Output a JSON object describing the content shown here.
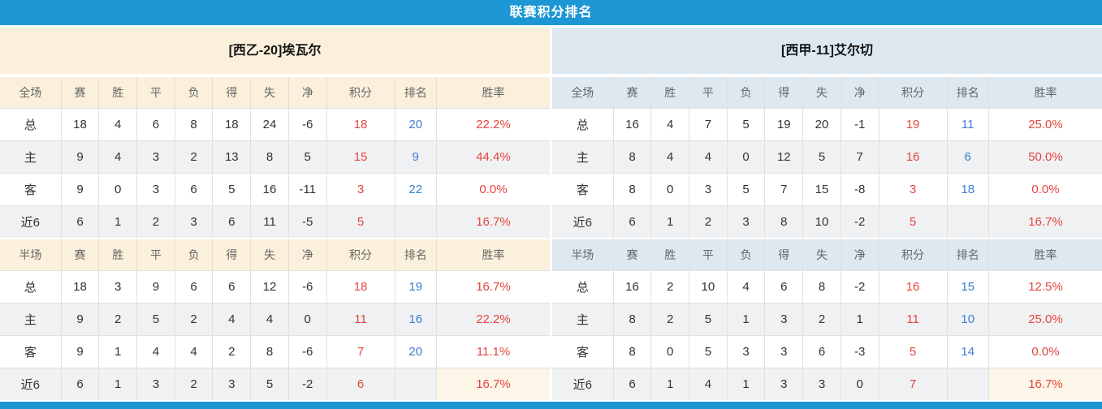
{
  "title": "联赛积分排名",
  "colors": {
    "accent_blue": "#1d97d4",
    "cream": "#faf0db",
    "cream_highlight": "#fcf6e8",
    "light_blue": "#dde8f1",
    "row_alt": "#f0f1f3",
    "border": "#e0e0e0",
    "points_red": "#e6453e",
    "rank_blue": "#3d7dd2",
    "home_label_red": "#d2495c",
    "away_label_blue": "#5a55dd",
    "text_dark": "#333333",
    "header_text": "#666666"
  },
  "stat_columns": [
    "赛",
    "胜",
    "平",
    "负",
    "得",
    "失",
    "净",
    "积分",
    "排名",
    "胜率"
  ],
  "teams": [
    {
      "name": "[西乙-20]埃瓦尔",
      "theme": "cream",
      "sections": [
        {
          "scope_label": "全场",
          "rows": [
            {
              "label": "总",
              "label_style": "dark",
              "values": [
                "18",
                "4",
                "6",
                "8",
                "18",
                "24",
                "-6"
              ],
              "points": "18",
              "rank": "20",
              "rate": "22.2%"
            },
            {
              "label": "主",
              "label_style": "home",
              "values": [
                "9",
                "4",
                "3",
                "2",
                "13",
                "8",
                "5"
              ],
              "points": "15",
              "rank": "9",
              "rate": "44.4%"
            },
            {
              "label": "客",
              "label_style": "away",
              "values": [
                "9",
                "0",
                "3",
                "6",
                "5",
                "16",
                "-11"
              ],
              "points": "3",
              "rank": "22",
              "rate": "0.0%"
            },
            {
              "label": "近6",
              "label_style": "dark",
              "values": [
                "6",
                "1",
                "2",
                "3",
                "6",
                "11",
                "-5"
              ],
              "points": "5",
              "rank": "",
              "rate": "16.7%"
            }
          ]
        },
        {
          "scope_label": "半场",
          "rows": [
            {
              "label": "总",
              "label_style": "dark",
              "values": [
                "18",
                "3",
                "9",
                "6",
                "6",
                "12",
                "-6"
              ],
              "points": "18",
              "rank": "19",
              "rate": "16.7%"
            },
            {
              "label": "主",
              "label_style": "home",
              "values": [
                "9",
                "2",
                "5",
                "2",
                "4",
                "4",
                "0"
              ],
              "points": "11",
              "rank": "16",
              "rate": "22.2%"
            },
            {
              "label": "客",
              "label_style": "away",
              "values": [
                "9",
                "1",
                "4",
                "4",
                "2",
                "8",
                "-6"
              ],
              "points": "7",
              "rank": "20",
              "rate": "11.1%"
            },
            {
              "label": "近6",
              "label_style": "dark",
              "values": [
                "6",
                "1",
                "3",
                "2",
                "3",
                "5",
                "-2"
              ],
              "points": "6",
              "rank": "",
              "rate": "16.7%"
            }
          ]
        }
      ]
    },
    {
      "name": "[西甲-11]艾尔切",
      "theme": "blue",
      "sections": [
        {
          "scope_label": "全场",
          "rows": [
            {
              "label": "总",
              "label_style": "dark",
              "values": [
                "16",
                "4",
                "7",
                "5",
                "19",
                "20",
                "-1"
              ],
              "points": "19",
              "rank": "11",
              "rate": "25.0%"
            },
            {
              "label": "主",
              "label_style": "home",
              "values": [
                "8",
                "4",
                "4",
                "0",
                "12",
                "5",
                "7"
              ],
              "points": "16",
              "rank": "6",
              "rate": "50.0%"
            },
            {
              "label": "客",
              "label_style": "away",
              "values": [
                "8",
                "0",
                "3",
                "5",
                "7",
                "15",
                "-8"
              ],
              "points": "3",
              "rank": "18",
              "rate": "0.0%"
            },
            {
              "label": "近6",
              "label_style": "dark",
              "values": [
                "6",
                "1",
                "2",
                "3",
                "8",
                "10",
                "-2"
              ],
              "points": "5",
              "rank": "",
              "rate": "16.7%"
            }
          ]
        },
        {
          "scope_label": "半场",
          "rows": [
            {
              "label": "总",
              "label_style": "dark",
              "values": [
                "16",
                "2",
                "10",
                "4",
                "6",
                "8",
                "-2"
              ],
              "points": "16",
              "rank": "15",
              "rate": "12.5%"
            },
            {
              "label": "主",
              "label_style": "home",
              "values": [
                "8",
                "2",
                "5",
                "1",
                "3",
                "2",
                "1"
              ],
              "points": "11",
              "rank": "10",
              "rate": "25.0%"
            },
            {
              "label": "客",
              "label_style": "away",
              "values": [
                "8",
                "0",
                "5",
                "3",
                "3",
                "6",
                "-3"
              ],
              "points": "5",
              "rank": "14",
              "rate": "0.0%"
            },
            {
              "label": "近6",
              "label_style": "dark",
              "values": [
                "6",
                "1",
                "4",
                "1",
                "3",
                "3",
                "0"
              ],
              "points": "7",
              "rank": "",
              "rate": "16.7%"
            }
          ]
        }
      ]
    }
  ],
  "column_widths_pct": [
    11.1,
    6.9,
    6.9,
    6.9,
    6.9,
    6.9,
    6.9,
    6.9,
    12.4,
    7.6,
    20.6
  ]
}
